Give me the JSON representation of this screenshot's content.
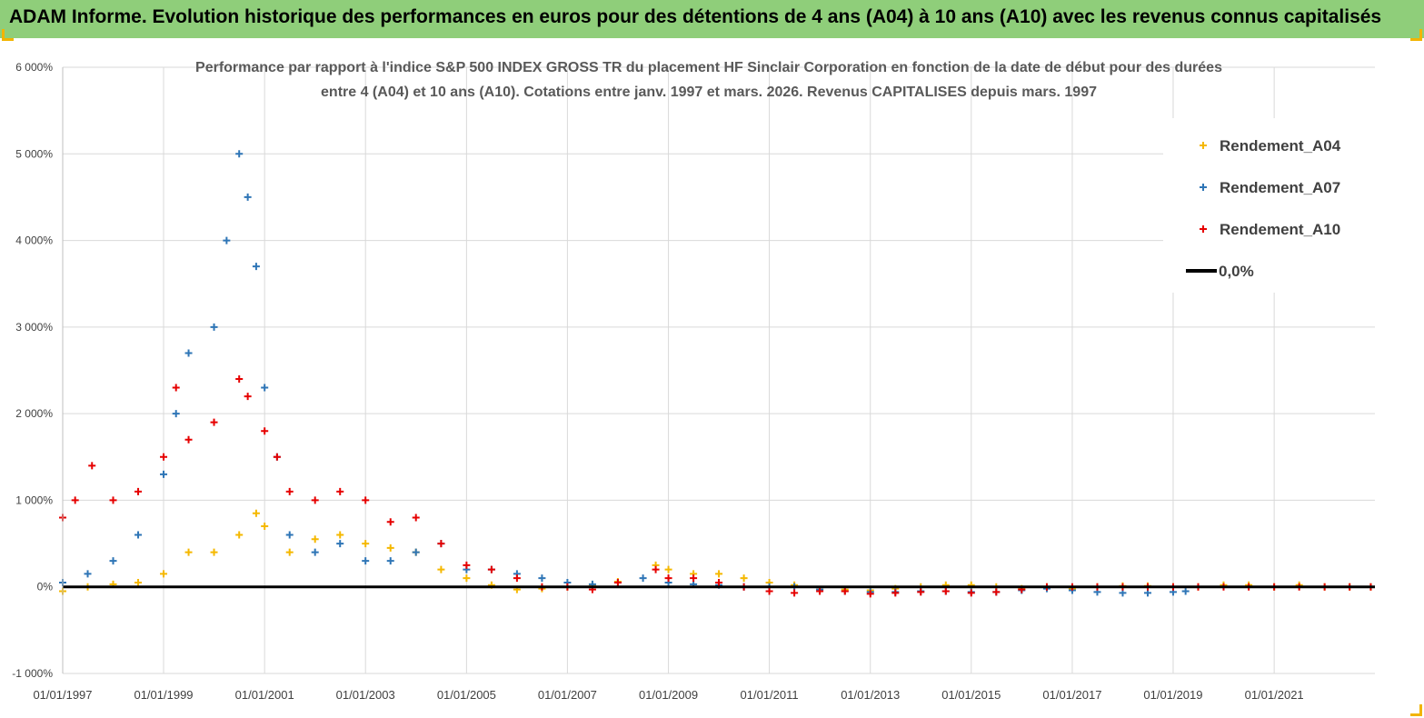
{
  "banner": {
    "title": "ADAM Informe. Evolution historique des performances en euros pour des détentions de 4 ans (A04) à 10 ans (A10) avec les revenus connus capitalisés"
  },
  "chart_data": {
    "type": "scatter",
    "subtitle_lines": [
      "Performance par rapport à l'indice S&P 500 INDEX GROSS TR  du placement HF Sinclair Corporation en fonction de la date de début pour des durées",
      "entre 4 (A04) et 10 ans (A10). Cotations entre janv. 1997 et mars. 2026. Revenus CAPITALISES depuis mars. 1997"
    ],
    "xlabel": "",
    "ylabel": "",
    "x_range": [
      "1997-01-01",
      "2022-12-31"
    ],
    "ylim": [
      -1000,
      6000
    ],
    "y_ticks": [
      -1000,
      0,
      1000,
      2000,
      3000,
      4000,
      5000,
      6000
    ],
    "y_tick_labels": [
      "-1 000%",
      "0%",
      "1 000%",
      "2 000%",
      "3 000%",
      "4 000%",
      "5 000%",
      "6 000%"
    ],
    "x_ticks": [
      "1997-01-01",
      "1999-01-01",
      "2001-01-01",
      "2003-01-01",
      "2005-01-01",
      "2007-01-01",
      "2009-01-01",
      "2011-01-01",
      "2013-01-01",
      "2015-01-01",
      "2017-01-01",
      "2019-01-01",
      "2021-01-01"
    ],
    "x_tick_labels": [
      "01/01/1997",
      "01/01/1999",
      "01/01/2001",
      "01/01/2003",
      "01/01/2005",
      "01/01/2007",
      "01/01/2009",
      "01/01/2011",
      "01/01/2013",
      "01/01/2015",
      "01/01/2017",
      "01/01/2019",
      "01/01/2021"
    ],
    "grid": true,
    "legend_position": "top-right",
    "series": [
      {
        "name": "Rendement_A04",
        "color": "#f5b800",
        "marker": "plus",
        "points": [
          [
            "1997-01-01",
            -50
          ],
          [
            "1997-07-01",
            0
          ],
          [
            "1998-01-01",
            30
          ],
          [
            "1998-07-01",
            50
          ],
          [
            "1999-01-01",
            150
          ],
          [
            "1999-07-01",
            400
          ],
          [
            "2000-01-01",
            400
          ],
          [
            "2000-07-01",
            600
          ],
          [
            "2000-11-01",
            850
          ],
          [
            "2001-01-01",
            700
          ],
          [
            "2001-07-01",
            400
          ],
          [
            "2002-01-01",
            550
          ],
          [
            "2002-07-01",
            600
          ],
          [
            "2003-01-01",
            500
          ],
          [
            "2003-07-01",
            450
          ],
          [
            "2004-01-01",
            400
          ],
          [
            "2004-07-01",
            200
          ],
          [
            "2005-01-01",
            100
          ],
          [
            "2005-07-01",
            20
          ],
          [
            "2006-01-01",
            -30
          ],
          [
            "2006-07-01",
            -20
          ],
          [
            "2007-01-01",
            0
          ],
          [
            "2007-07-01",
            20
          ],
          [
            "2008-01-01",
            60
          ],
          [
            "2008-10-01",
            250
          ],
          [
            "2009-01-01",
            200
          ],
          [
            "2009-07-01",
            150
          ],
          [
            "2010-01-01",
            150
          ],
          [
            "2010-07-01",
            100
          ],
          [
            "2011-01-01",
            50
          ],
          [
            "2011-07-01",
            20
          ],
          [
            "2012-01-01",
            -30
          ],
          [
            "2012-07-01",
            -30
          ],
          [
            "2013-01-01",
            -40
          ],
          [
            "2013-07-01",
            -20
          ],
          [
            "2014-01-01",
            0
          ],
          [
            "2014-07-01",
            20
          ],
          [
            "2015-01-01",
            20
          ],
          [
            "2015-07-01",
            0
          ],
          [
            "2016-01-01",
            -20
          ],
          [
            "2016-07-01",
            0
          ],
          [
            "2017-01-01",
            -20
          ],
          [
            "2017-07-01",
            0
          ],
          [
            "2018-01-01",
            10
          ],
          [
            "2018-07-01",
            10
          ],
          [
            "2019-01-01",
            0
          ],
          [
            "2019-07-01",
            0
          ],
          [
            "2020-01-01",
            20
          ],
          [
            "2020-07-01",
            20
          ],
          [
            "2021-01-01",
            0
          ],
          [
            "2021-07-01",
            20
          ],
          [
            "2022-01-01",
            0
          ],
          [
            "2022-07-01",
            0
          ],
          [
            "2022-12-01",
            0
          ]
        ]
      },
      {
        "name": "Rendement_A07",
        "color": "#2e75b6",
        "marker": "plus",
        "points": [
          [
            "1997-01-01",
            50
          ],
          [
            "1997-07-01",
            150
          ],
          [
            "1998-01-01",
            300
          ],
          [
            "1998-07-01",
            600
          ],
          [
            "1999-01-01",
            1300
          ],
          [
            "1999-04-01",
            2000
          ],
          [
            "1999-07-01",
            2700
          ],
          [
            "2000-01-01",
            3000
          ],
          [
            "2000-04-01",
            4000
          ],
          [
            "2000-07-01",
            5000
          ],
          [
            "2000-09-01",
            4500
          ],
          [
            "2000-11-01",
            3700
          ],
          [
            "2001-01-01",
            2300
          ],
          [
            "2001-04-01",
            1500
          ],
          [
            "2001-07-01",
            600
          ],
          [
            "2002-01-01",
            400
          ],
          [
            "2002-07-01",
            500
          ],
          [
            "2003-01-01",
            300
          ],
          [
            "2003-07-01",
            300
          ],
          [
            "2004-01-01",
            400
          ],
          [
            "2004-07-01",
            500
          ],
          [
            "2005-01-01",
            200
          ],
          [
            "2005-07-01",
            200
          ],
          [
            "2006-01-01",
            150
          ],
          [
            "2006-07-01",
            100
          ],
          [
            "2007-01-01",
            50
          ],
          [
            "2007-07-01",
            30
          ],
          [
            "2008-01-01",
            50
          ],
          [
            "2008-07-01",
            100
          ],
          [
            "2009-01-01",
            50
          ],
          [
            "2009-07-01",
            30
          ],
          [
            "2010-01-01",
            20
          ],
          [
            "2010-07-01",
            0
          ],
          [
            "2011-01-01",
            0
          ],
          [
            "2011-07-01",
            0
          ],
          [
            "2012-01-01",
            -30
          ],
          [
            "2012-07-01",
            -50
          ],
          [
            "2013-01-01",
            -60
          ],
          [
            "2013-07-01",
            -60
          ],
          [
            "2014-01-01",
            -50
          ],
          [
            "2014-07-01",
            -50
          ],
          [
            "2015-01-01",
            -60
          ],
          [
            "2015-07-01",
            -60
          ],
          [
            "2016-01-01",
            -40
          ],
          [
            "2016-07-01",
            -20
          ],
          [
            "2017-01-01",
            -40
          ],
          [
            "2017-07-01",
            -60
          ],
          [
            "2018-01-01",
            -70
          ],
          [
            "2018-07-01",
            -70
          ],
          [
            "2019-01-01",
            -60
          ],
          [
            "2019-04-01",
            -50
          ]
        ]
      },
      {
        "name": "Rendement_A10",
        "color": "#e60000",
        "marker": "plus",
        "points": [
          [
            "1997-01-01",
            800
          ],
          [
            "1997-04-01",
            1000
          ],
          [
            "1997-08-01",
            1400
          ],
          [
            "1998-01-01",
            1000
          ],
          [
            "1998-07-01",
            1100
          ],
          [
            "1999-01-01",
            1500
          ],
          [
            "1999-04-01",
            2300
          ],
          [
            "1999-07-01",
            1700
          ],
          [
            "2000-01-01",
            1900
          ],
          [
            "2000-07-01",
            2400
          ],
          [
            "2000-09-01",
            2200
          ],
          [
            "2001-01-01",
            1800
          ],
          [
            "2001-04-01",
            1500
          ],
          [
            "2001-07-01",
            1100
          ],
          [
            "2002-01-01",
            1000
          ],
          [
            "2002-07-01",
            1100
          ],
          [
            "2003-01-01",
            1000
          ],
          [
            "2003-07-01",
            750
          ],
          [
            "2004-01-01",
            800
          ],
          [
            "2004-07-01",
            500
          ],
          [
            "2005-01-01",
            250
          ],
          [
            "2005-07-01",
            200
          ],
          [
            "2006-01-01",
            100
          ],
          [
            "2006-07-01",
            0
          ],
          [
            "2007-01-01",
            0
          ],
          [
            "2007-07-01",
            -30
          ],
          [
            "2008-01-01",
            50
          ],
          [
            "2008-10-01",
            200
          ],
          [
            "2009-01-01",
            100
          ],
          [
            "2009-07-01",
            100
          ],
          [
            "2010-01-01",
            50
          ],
          [
            "2010-07-01",
            0
          ],
          [
            "2011-01-01",
            -50
          ],
          [
            "2011-07-01",
            -70
          ],
          [
            "2012-01-01",
            -50
          ],
          [
            "2012-07-01",
            -50
          ],
          [
            "2013-01-01",
            -80
          ],
          [
            "2013-07-01",
            -70
          ],
          [
            "2014-01-01",
            -60
          ],
          [
            "2014-07-01",
            -50
          ],
          [
            "2015-01-01",
            -70
          ],
          [
            "2015-07-01",
            -60
          ],
          [
            "2016-01-01",
            -30
          ],
          [
            "2016-07-01",
            0
          ],
          [
            "2017-01-01",
            0
          ],
          [
            "2017-07-01",
            0
          ],
          [
            "2018-01-01",
            0
          ],
          [
            "2018-07-01",
            0
          ],
          [
            "2019-01-01",
            0
          ],
          [
            "2019-07-01",
            0
          ],
          [
            "2020-01-01",
            0
          ],
          [
            "2020-07-01",
            0
          ],
          [
            "2021-01-01",
            0
          ],
          [
            "2021-07-01",
            0
          ],
          [
            "2022-01-01",
            0
          ],
          [
            "2022-07-01",
            0
          ],
          [
            "2022-12-01",
            0
          ]
        ]
      },
      {
        "name": "0,0%",
        "color": "#000000",
        "marker": "line",
        "points": [
          [
            "1997-01-01",
            0
          ],
          [
            "2022-12-31",
            0
          ]
        ]
      }
    ]
  }
}
